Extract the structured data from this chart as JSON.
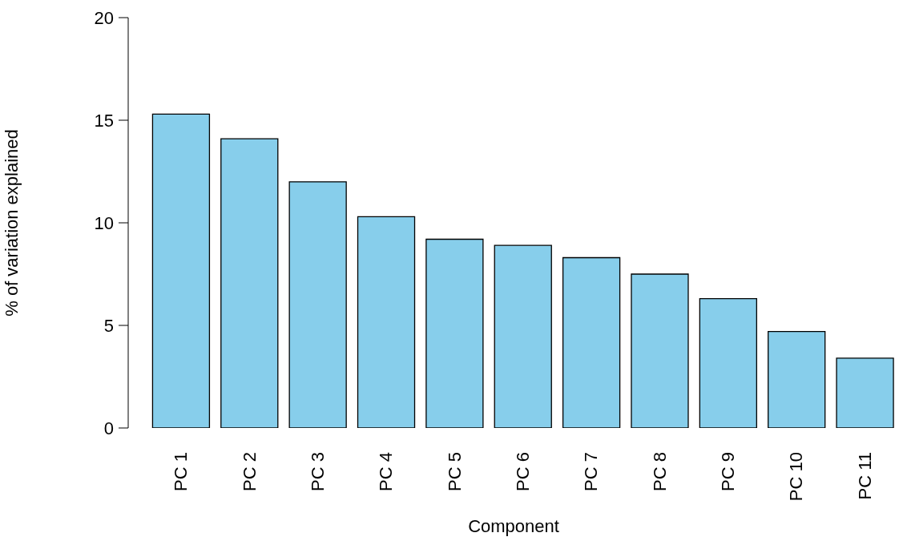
{
  "chart_data": {
    "type": "bar",
    "xlabel": "Component",
    "ylabel": "% of variation explained",
    "categories": [
      "PC 1",
      "PC 2",
      "PC 3",
      "PC 4",
      "PC 5",
      "PC 6",
      "PC 7",
      "PC 8",
      "PC 9",
      "PC 10",
      "PC 11"
    ],
    "values": [
      15.3,
      14.1,
      12.0,
      10.3,
      9.2,
      8.9,
      8.3,
      7.5,
      6.3,
      4.7,
      3.4
    ],
    "color": "#87ceeb",
    "ylim": [
      0,
      20
    ],
    "yticks": [
      0,
      5,
      10,
      15,
      20
    ],
    "grid": false,
    "legend": false
  }
}
